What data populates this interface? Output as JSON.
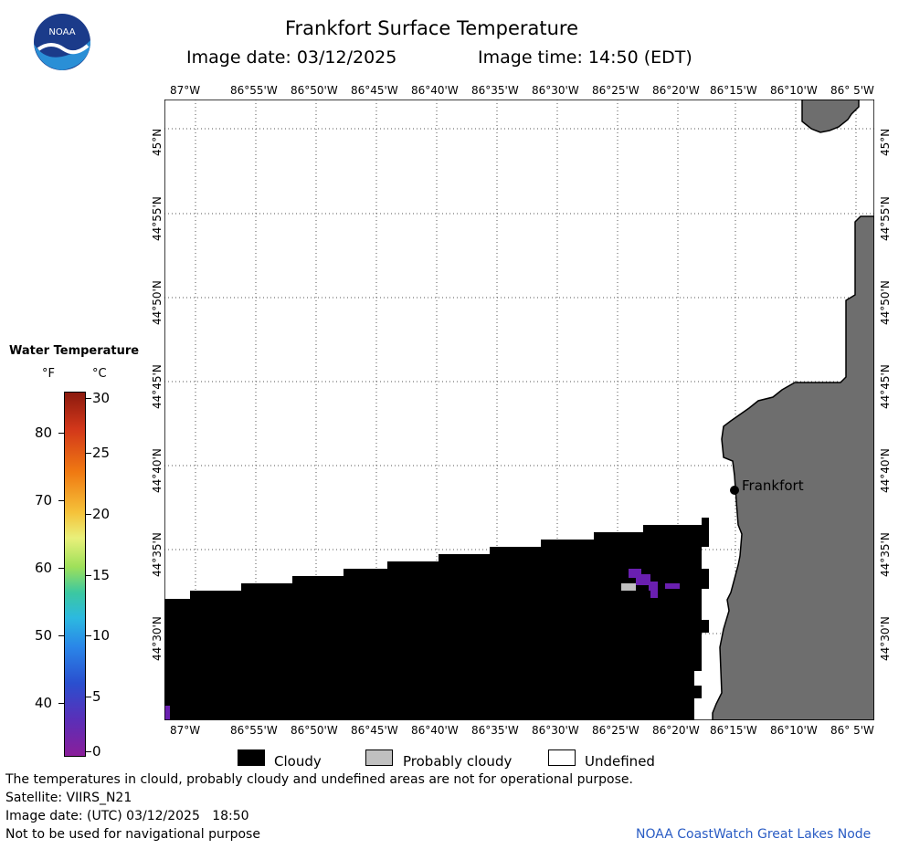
{
  "header": {
    "title": "Frankfort Surface Temperature",
    "image_date": "Image date: 03/12/2025",
    "image_time": "Image time: 14:50 (EDT)"
  },
  "logo": {
    "text": "NOAA",
    "colors": {
      "navy": "#1b3b8a",
      "sky": "#2a8fd6",
      "white": "#ffffff"
    }
  },
  "map": {
    "lon_labels": [
      "87°W",
      "86°55'W",
      "86°50'W",
      "86°45'W",
      "86°40'W",
      "86°35'W",
      "86°30'W",
      "86°25'W",
      "86°20'W",
      "86°15'W",
      "86°10'W",
      "86° 5'W"
    ],
    "lat_labels": [
      "45°N",
      "44°55'N",
      "44°50'N",
      "44°45'N",
      "44°40'N",
      "44°35'N",
      "44°30'N"
    ],
    "place_label": "Frankfort",
    "colors": {
      "land": "#6e6e6e",
      "cloud": "#000000",
      "water_undefined": "#ffffff",
      "probably_cloudy": "#c0c0c0",
      "cold_water": "#6a1fb0"
    }
  },
  "colorbar": {
    "title": "Water Temperature",
    "unit_f": "°F",
    "unit_c": "°C",
    "f_ticks": [
      "80",
      "70",
      "60",
      "50",
      "40"
    ],
    "c_ticks": [
      "30",
      "25",
      "20",
      "15",
      "10",
      "5",
      "0"
    ]
  },
  "legend": {
    "cloudy": "Cloudy",
    "probably_cloudy": "Probably cloudy",
    "undefined": "Undefined"
  },
  "footer": {
    "note": "The temperatures in clould, probably cloudy and undefined areas are not for operational purpose.",
    "satellite": "Satellite: VIIRS_N21",
    "utc_date": "Image date: (UTC) 03/12/2025   18:50",
    "nav_warning": "Not to be used for navigational purpose",
    "credit": "NOAA CoastWatch Great Lakes Node"
  }
}
